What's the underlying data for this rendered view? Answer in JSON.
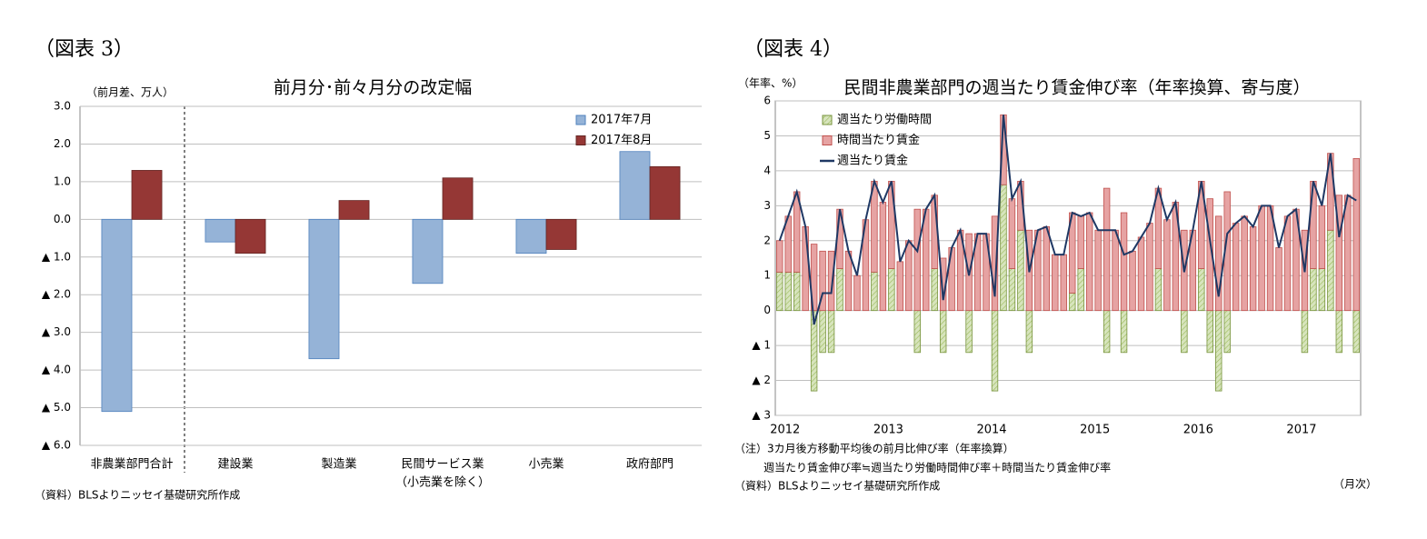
{
  "chart_data": [
    {
      "type": "bar",
      "figure_label": "（図表 3）",
      "title": "前月分･前々月分の改定幅",
      "y_label": "（前月差、万人）",
      "source": "（資料）BLSよりニッセイ基礎研究所作成",
      "categories": [
        "非農業部門合計",
        "建設業",
        "製造業",
        "民間サービス業",
        "小売業",
        "政府部門"
      ],
      "category_sub_label": "（小売業を除く）",
      "series": [
        {
          "name": "2017年7月",
          "color": "#95b3d7",
          "values": [
            -5.1,
            -0.6,
            -3.7,
            -1.7,
            -0.9,
            1.8
          ]
        },
        {
          "name": "2017年8月",
          "color": "#953735",
          "values": [
            1.3,
            -0.9,
            0.5,
            1.1,
            -0.8,
            1.4
          ]
        }
      ],
      "ylim": [
        -6,
        3
      ],
      "yticks": [
        {
          "value": 3,
          "label": "3.0"
        },
        {
          "value": 2,
          "label": "2.0"
        },
        {
          "value": 1,
          "label": "1.0"
        },
        {
          "value": 0,
          "label": "0.0"
        },
        {
          "value": -1,
          "label": "▲ 1.0"
        },
        {
          "value": -2,
          "label": "▲ 2.0"
        },
        {
          "value": -3,
          "label": "▲ 3.0"
        },
        {
          "value": -4,
          "label": "▲ 4.0"
        },
        {
          "value": -5,
          "label": "▲ 5.0"
        },
        {
          "value": -6,
          "label": "▲ 6.0"
        }
      ],
      "grid": true,
      "legend": "upper right"
    },
    {
      "type": "bar",
      "stacked": true,
      "figure_label": "（図表 4）",
      "title": "民間非農業部門の週当たり賃金伸び率（年率換算、寄与度）",
      "y_label": "（年率、%）",
      "x_label": "（月次）",
      "notes": [
        "（注）3カ月後方移動平均後の前月比伸び率（年率換算）",
        "週当たり賃金伸び率≒週当たり労働時間伸び率＋時間当たり賃金伸び率"
      ],
      "source": "（資料）BLSよりニッセイ基礎研究所作成",
      "categories": [
        "2012",
        null,
        null,
        null,
        null,
        null,
        null,
        null,
        null,
        null,
        null,
        null,
        "2013",
        null,
        null,
        null,
        null,
        null,
        null,
        null,
        null,
        null,
        null,
        null,
        "2014",
        null,
        null,
        null,
        null,
        null,
        null,
        null,
        null,
        null,
        null,
        null,
        "2015",
        null,
        null,
        null,
        null,
        null,
        null,
        null,
        null,
        null,
        null,
        null,
        "2016",
        null,
        null,
        null,
        null,
        null,
        null,
        null,
        null,
        null,
        null,
        null,
        "2017",
        null,
        null,
        null,
        null,
        null,
        null,
        null
      ],
      "series": [
        {
          "name": "週当たり労働時間",
          "color": "#d7e4bd",
          "values": [
            1.1,
            1.1,
            1.1,
            0,
            -2.3,
            -1.2,
            -1.2,
            1.2,
            0,
            0,
            0,
            1.1,
            0,
            1.2,
            0,
            0,
            -1.2,
            0,
            1.2,
            -1.2,
            0,
            0,
            -1.2,
            0,
            0,
            -2.3,
            3.6,
            1.2,
            2.3,
            -1.2,
            0,
            0,
            0,
            0,
            0.5,
            1.2,
            0,
            0,
            -1.2,
            0,
            -1.2,
            0,
            0,
            0,
            1.2,
            0,
            0,
            -1.2,
            0,
            1.2,
            -1.2,
            -2.3,
            -1.2,
            0,
            0,
            0,
            0,
            0,
            0,
            0,
            0,
            -1.2,
            1.2,
            1.2,
            2.3,
            -1.2,
            0,
            -1.2
          ]
        },
        {
          "name": "時間当たり賃金",
          "color": "#e6a3a3",
          "values": [
            0.9,
            1.6,
            2.3,
            2.4,
            1.9,
            1.7,
            1.7,
            1.7,
            1.7,
            1.0,
            2.6,
            2.6,
            3.1,
            2.5,
            1.4,
            2.0,
            2.9,
            2.9,
            2.1,
            1.5,
            1.8,
            2.3,
            2.2,
            2.2,
            2.2,
            2.7,
            2.0,
            2.0,
            1.4,
            2.3,
            2.3,
            2.4,
            1.6,
            1.6,
            2.3,
            1.5,
            2.8,
            2.3,
            3.5,
            2.3,
            2.8,
            1.7,
            2.1,
            2.5,
            2.3,
            2.6,
            3.1,
            2.3,
            2.3,
            2.5,
            3.2,
            2.7,
            3.4,
            2.5,
            2.7,
            2.4,
            3.0,
            3.0,
            1.8,
            2.7,
            2.9,
            2.3,
            2.5,
            1.8,
            2.2,
            3.3,
            3.3,
            4.35
          ]
        },
        {
          "name": "週当たり賃金",
          "color": "#1f3864",
          "type": "line",
          "values": [
            2.0,
            2.7,
            3.4,
            2.4,
            -0.4,
            0.5,
            0.5,
            2.9,
            1.7,
            1.0,
            2.6,
            3.7,
            3.1,
            3.7,
            1.4,
            2.0,
            1.7,
            2.9,
            3.3,
            0.3,
            1.8,
            2.3,
            1.0,
            2.2,
            2.2,
            0.4,
            5.6,
            3.2,
            3.7,
            1.1,
            2.3,
            2.4,
            1.6,
            1.6,
            2.8,
            2.7,
            2.8,
            2.3,
            2.3,
            2.3,
            1.6,
            1.7,
            2.1,
            2.5,
            3.5,
            2.6,
            3.1,
            1.1,
            2.3,
            3.7,
            2.0,
            0.4,
            2.2,
            2.5,
            2.7,
            2.4,
            3.0,
            3.0,
            1.8,
            2.7,
            2.9,
            1.1,
            3.7,
            3.0,
            4.5,
            2.1,
            3.3,
            3.15
          ]
        }
      ],
      "ylim": [
        -3,
        6
      ],
      "yticks": [
        6,
        5,
        4,
        3,
        2,
        1,
        0,
        {
          "value": -1,
          "label": "▲ 1"
        },
        {
          "value": -2,
          "label": "▲ 2"
        },
        {
          "value": -3,
          "label": "▲ 3"
        }
      ],
      "grid": true,
      "legend": "upper left"
    }
  ]
}
